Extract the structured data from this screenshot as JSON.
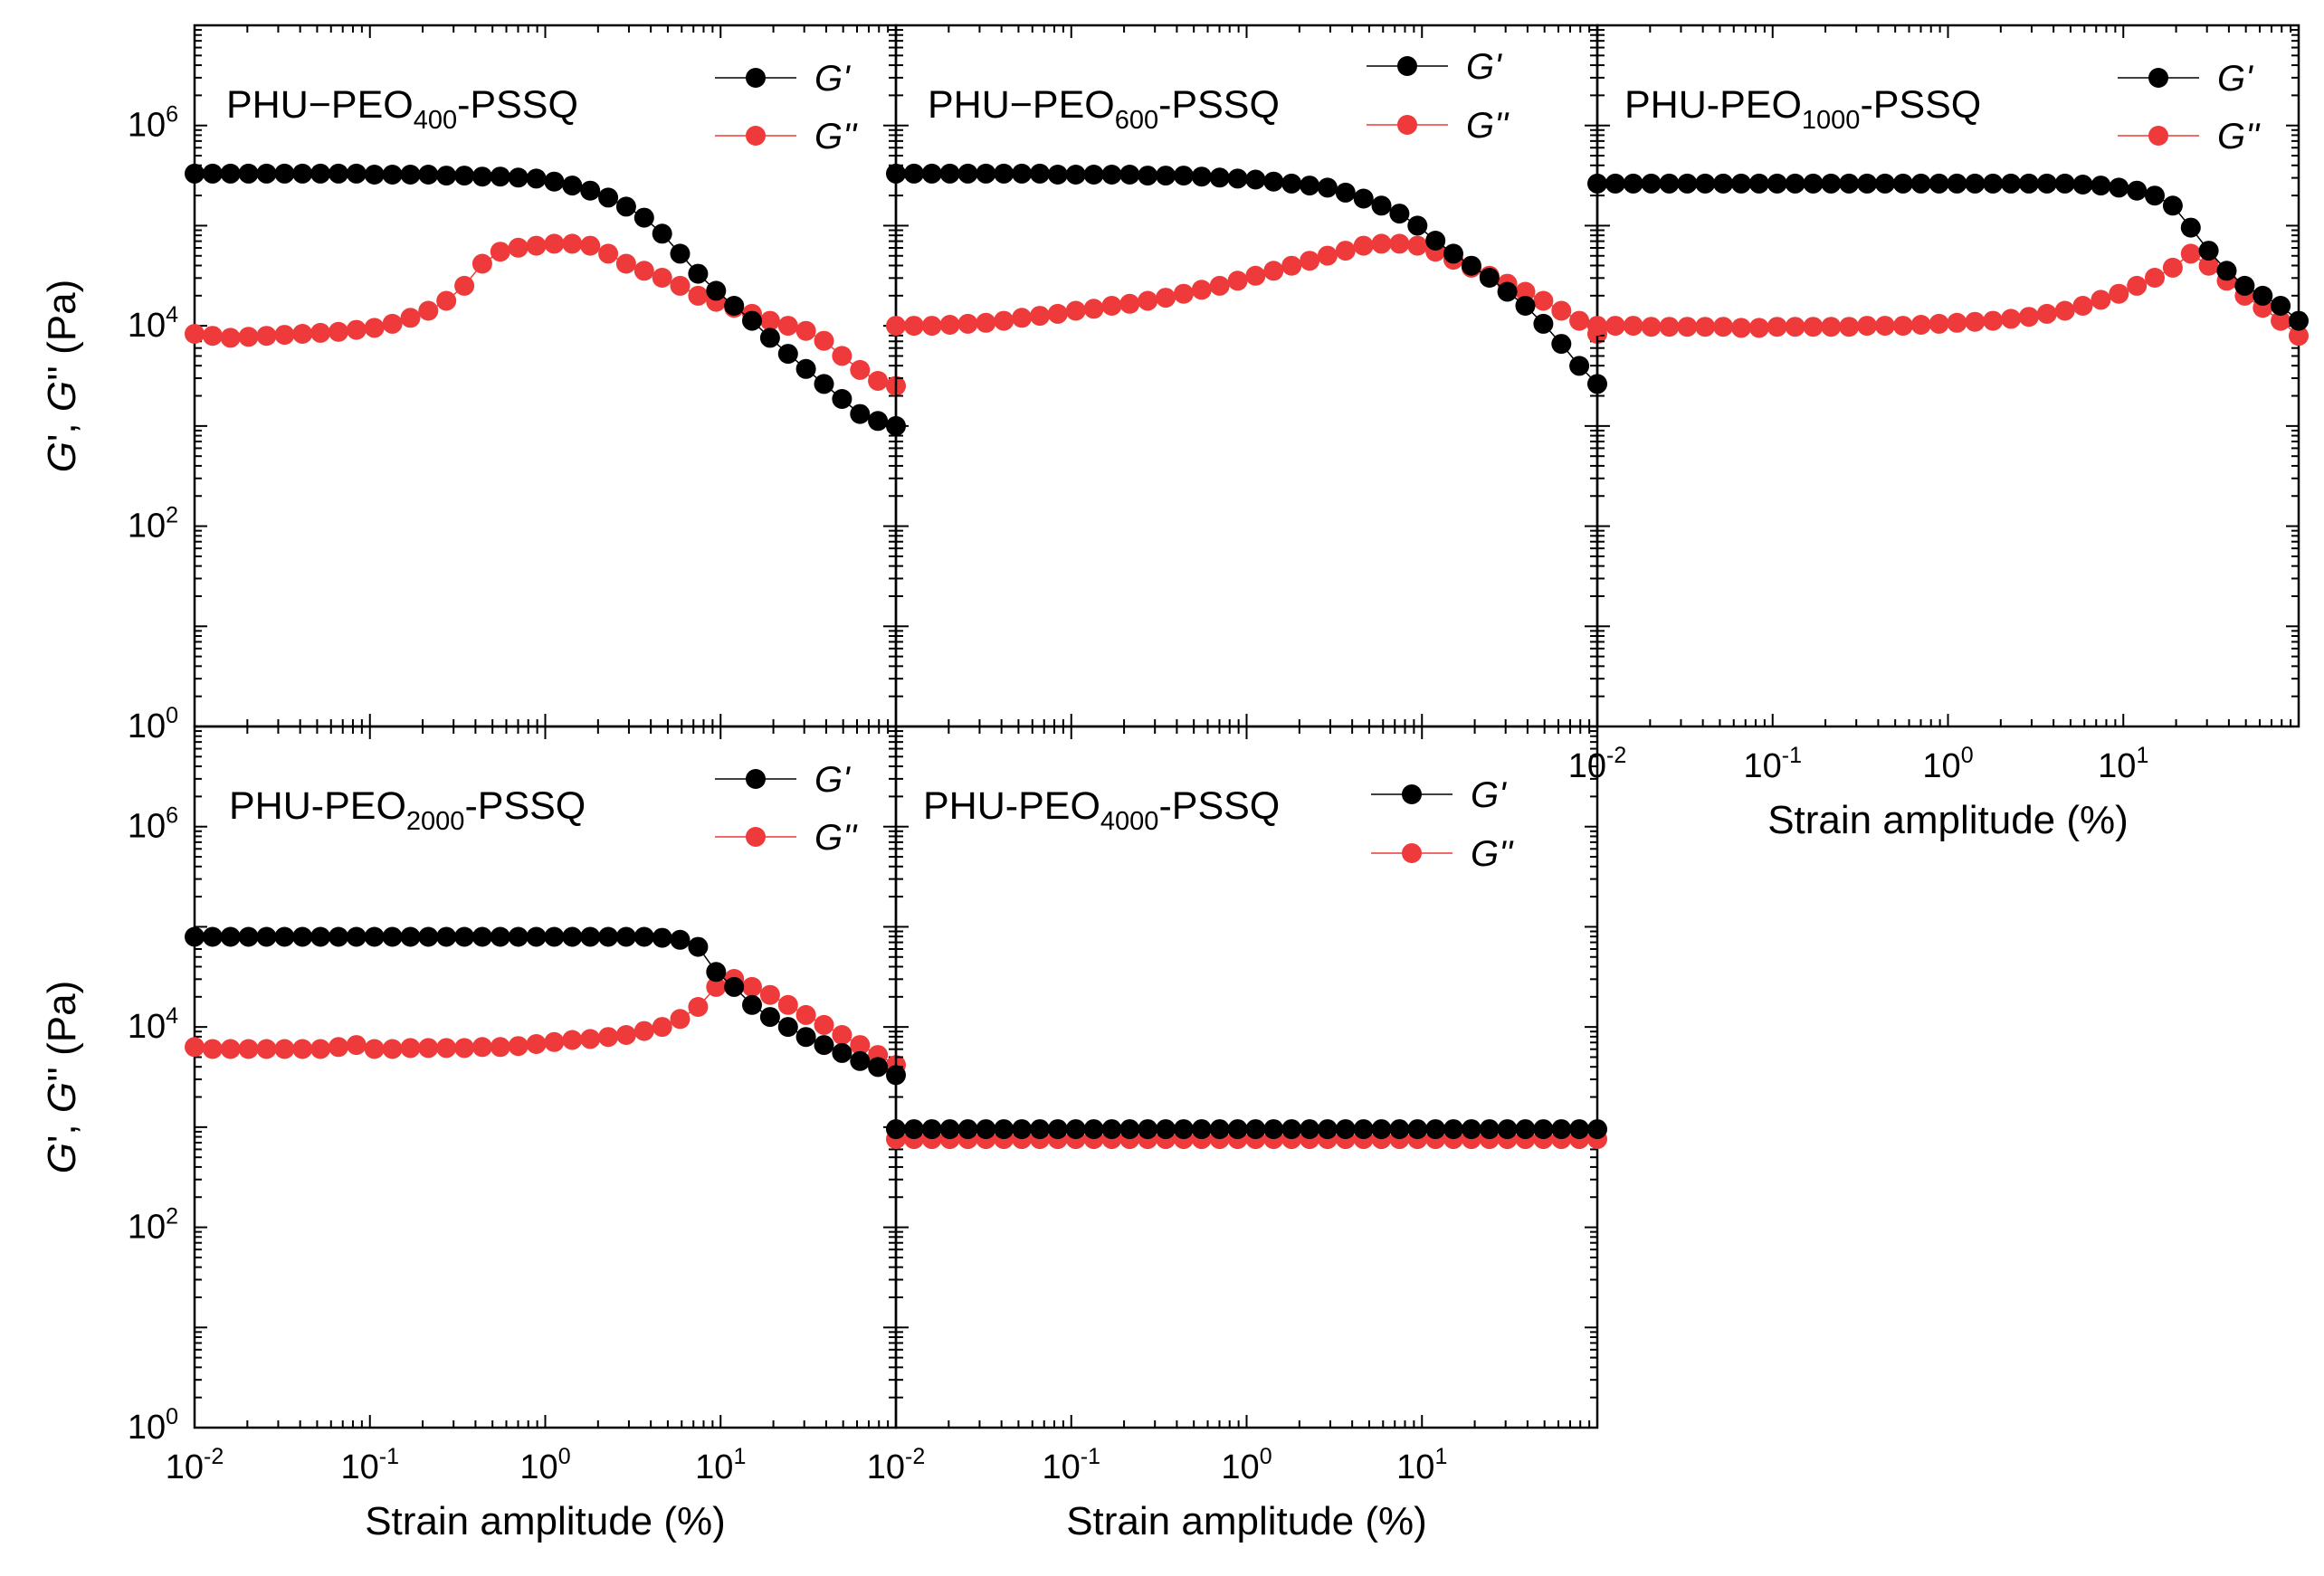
{
  "figure": {
    "x_axis_label": "Strain amplitude (%)",
    "y_axis_label_parts": [
      "G",
      "', ",
      "G",
      "'' (Pa)"
    ],
    "tick_base": "10",
    "x_tick_exponents": [
      "-2",
      "-1",
      "0",
      "1"
    ],
    "y_tick_exponents": [
      "0",
      "2",
      "4",
      "6"
    ],
    "colors": {
      "g_prime": "#000000",
      "g_double_prime": "#ee3a3a",
      "axis": "#000000"
    }
  },
  "chart_data": [
    {
      "type": "scatter",
      "title": "PHU−PEO400-PSSQ",
      "title_parts": [
        "PHU−PEO",
        "400",
        "-PSSQ"
      ],
      "xlabel": "",
      "ylabel": "G', G'' (Pa)",
      "xscale": "log",
      "yscale": "log",
      "xlim": [
        0.01,
        100
      ],
      "ylim": [
        1,
        10000000
      ],
      "legend": {
        "position": "top-right",
        "entries": [
          "G'",
          "G''"
        ]
      },
      "series": [
        {
          "name": "G'",
          "x_log10_range": [
            -2,
            2
          ],
          "y_log10": [
            5.52,
            5.52,
            5.52,
            5.52,
            5.52,
            5.52,
            5.52,
            5.52,
            5.52,
            5.52,
            5.51,
            5.51,
            5.51,
            5.51,
            5.5,
            5.5,
            5.49,
            5.49,
            5.48,
            5.47,
            5.44,
            5.4,
            5.35,
            5.28,
            5.19,
            5.08,
            4.92,
            4.72,
            4.52,
            4.35,
            4.2,
            4.05,
            3.88,
            3.72,
            3.57,
            3.42,
            3.27,
            3.12,
            3.05,
            3.0
          ]
        },
        {
          "name": "G''",
          "x_log10_range": [
            -2,
            2
          ],
          "y_log10": [
            3.92,
            3.9,
            3.88,
            3.89,
            3.9,
            3.91,
            3.92,
            3.93,
            3.94,
            3.96,
            3.98,
            4.02,
            4.08,
            4.15,
            4.25,
            4.4,
            4.62,
            4.74,
            4.78,
            4.8,
            4.82,
            4.82,
            4.8,
            4.72,
            4.62,
            4.55,
            4.48,
            4.4,
            4.3,
            4.24,
            4.18,
            4.12,
            4.05,
            4.0,
            3.95,
            3.85,
            3.7,
            3.56,
            3.45,
            3.4
          ]
        }
      ]
    },
    {
      "type": "scatter",
      "title": "PHU−PEO600-PSSQ",
      "title_parts": [
        "PHU−PEO",
        "600",
        "-PSSQ"
      ],
      "xlabel": "",
      "ylabel": "",
      "xscale": "log",
      "yscale": "log",
      "xlim": [
        0.01,
        100
      ],
      "ylim": [
        1,
        10000000
      ],
      "legend": {
        "position": "top-right",
        "entries": [
          "G'",
          "G''"
        ]
      },
      "series": [
        {
          "name": "G'",
          "x_log10_range": [
            -2,
            2
          ],
          "y_log10": [
            5.52,
            5.52,
            5.52,
            5.52,
            5.52,
            5.52,
            5.52,
            5.52,
            5.52,
            5.51,
            5.51,
            5.51,
            5.51,
            5.51,
            5.5,
            5.5,
            5.5,
            5.49,
            5.48,
            5.47,
            5.46,
            5.44,
            5.42,
            5.4,
            5.38,
            5.33,
            5.27,
            5.2,
            5.12,
            5.0,
            4.85,
            4.72,
            4.6,
            4.48,
            4.34,
            4.2,
            4.02,
            3.82,
            3.6,
            3.42
          ]
        },
        {
          "name": "G''",
          "x_log10_range": [
            -2,
            2
          ],
          "y_log10": [
            4.0,
            4.0,
            4.0,
            4.01,
            4.02,
            4.03,
            4.05,
            4.08,
            4.1,
            4.12,
            4.15,
            4.17,
            4.2,
            4.22,
            4.25,
            4.28,
            4.32,
            4.36,
            4.4,
            4.45,
            4.5,
            4.55,
            4.6,
            4.65,
            4.7,
            4.75,
            4.8,
            4.82,
            4.82,
            4.8,
            4.74,
            4.66,
            4.58,
            4.5,
            4.42,
            4.34,
            4.25,
            4.15,
            4.05,
            3.92
          ]
        }
      ]
    },
    {
      "type": "scatter",
      "title": "PHU-PEO1000-PSSQ",
      "title_parts": [
        "PHU-PEO",
        "1000",
        "-PSSQ"
      ],
      "xlabel": "Strain amplitude (%)",
      "ylabel": "",
      "xscale": "log",
      "yscale": "log",
      "xlim": [
        0.01,
        100
      ],
      "ylim": [
        1,
        10000000
      ],
      "legend": {
        "position": "top-right",
        "entries": [
          "G'",
          "G''"
        ]
      },
      "series": [
        {
          "name": "G'",
          "x_log10_range": [
            -2,
            2
          ],
          "y_log10": [
            5.42,
            5.42,
            5.42,
            5.42,
            5.42,
            5.42,
            5.42,
            5.42,
            5.42,
            5.42,
            5.42,
            5.42,
            5.42,
            5.42,
            5.42,
            5.42,
            5.42,
            5.42,
            5.42,
            5.42,
            5.42,
            5.42,
            5.42,
            5.42,
            5.42,
            5.42,
            5.42,
            5.41,
            5.4,
            5.38,
            5.35,
            5.3,
            5.2,
            4.98,
            4.75,
            4.55,
            4.4,
            4.3,
            4.2,
            4.05
          ]
        },
        {
          "name": "G''",
          "x_log10_range": [
            -2,
            2
          ],
          "y_log10": [
            4.0,
            4.0,
            4.0,
            3.99,
            3.99,
            3.99,
            3.99,
            3.99,
            3.98,
            3.98,
            3.99,
            3.99,
            3.99,
            3.99,
            3.99,
            4.0,
            4.0,
            4.0,
            4.01,
            4.02,
            4.03,
            4.04,
            4.05,
            4.07,
            4.09,
            4.12,
            4.15,
            4.2,
            4.26,
            4.32,
            4.4,
            4.48,
            4.58,
            4.72,
            4.6,
            4.45,
            4.3,
            4.18,
            4.05,
            3.9
          ]
        }
      ]
    },
    {
      "type": "scatter",
      "title": "PHU-PEO2000-PSSQ",
      "title_parts": [
        "PHU-PEO",
        "2000",
        "-PSSQ"
      ],
      "xlabel": "Strain amplitude (%)",
      "ylabel": "G', G'' (Pa)",
      "xscale": "log",
      "yscale": "log",
      "xlim": [
        0.01,
        100
      ],
      "ylim": [
        1,
        10000000
      ],
      "legend": {
        "position": "top-right",
        "entries": [
          "G'",
          "G''"
        ]
      },
      "series": [
        {
          "name": "G'",
          "x_log10_range": [
            -2,
            2
          ],
          "y_log10": [
            4.9,
            4.9,
            4.9,
            4.9,
            4.9,
            4.9,
            4.9,
            4.9,
            4.9,
            4.9,
            4.9,
            4.9,
            4.9,
            4.9,
            4.9,
            4.9,
            4.9,
            4.9,
            4.9,
            4.9,
            4.9,
            4.9,
            4.9,
            4.9,
            4.9,
            4.9,
            4.89,
            4.87,
            4.8,
            4.55,
            4.4,
            4.22,
            4.1,
            4.0,
            3.9,
            3.82,
            3.74,
            3.66,
            3.6,
            3.52
          ]
        },
        {
          "name": "G''",
          "x_log10_range": [
            -2,
            2
          ],
          "y_log10": [
            3.8,
            3.78,
            3.78,
            3.78,
            3.78,
            3.78,
            3.78,
            3.78,
            3.8,
            3.82,
            3.78,
            3.78,
            3.79,
            3.79,
            3.79,
            3.79,
            3.8,
            3.8,
            3.81,
            3.83,
            3.85,
            3.87,
            3.88,
            3.9,
            3.92,
            3.96,
            4.0,
            4.08,
            4.2,
            4.4,
            4.48,
            4.4,
            4.32,
            4.22,
            4.12,
            4.02,
            3.92,
            3.82,
            3.72,
            3.62
          ]
        }
      ]
    },
    {
      "type": "scatter",
      "title": "PHU-PEO4000-PSSQ",
      "title_parts": [
        "PHU-PEO",
        "4000",
        "-PSSQ"
      ],
      "xlabel": "Strain amplitude (%)",
      "ylabel": "",
      "xscale": "log",
      "yscale": "log",
      "xlim": [
        0.01,
        100
      ],
      "ylim": [
        1,
        10000000
      ],
      "legend": {
        "position": "top-right",
        "entries": [
          "G'",
          "G''"
        ]
      },
      "series": [
        {
          "name": "G'",
          "x_log10_range": [
            -2,
            2
          ],
          "y_log10": [
            2.98,
            2.98,
            2.98,
            2.98,
            2.98,
            2.98,
            2.98,
            2.98,
            2.98,
            2.98,
            2.98,
            2.98,
            2.98,
            2.98,
            2.98,
            2.98,
            2.98,
            2.98,
            2.98,
            2.98,
            2.98,
            2.98,
            2.98,
            2.98,
            2.98,
            2.98,
            2.98,
            2.98,
            2.98,
            2.98,
            2.98,
            2.98,
            2.98,
            2.98,
            2.98,
            2.98,
            2.98,
            2.98,
            2.98,
            2.98
          ]
        },
        {
          "name": "G''",
          "x_log10_range": [
            -2,
            2
          ],
          "y_log10": [
            2.88,
            2.88,
            2.88,
            2.88,
            2.88,
            2.88,
            2.88,
            2.88,
            2.88,
            2.88,
            2.88,
            2.88,
            2.88,
            2.88,
            2.88,
            2.88,
            2.88,
            2.88,
            2.88,
            2.88,
            2.88,
            2.88,
            2.88,
            2.88,
            2.88,
            2.88,
            2.88,
            2.88,
            2.88,
            2.88,
            2.88,
            2.88,
            2.88,
            2.88,
            2.88,
            2.88,
            2.88,
            2.88,
            2.88,
            2.88
          ]
        }
      ]
    }
  ]
}
